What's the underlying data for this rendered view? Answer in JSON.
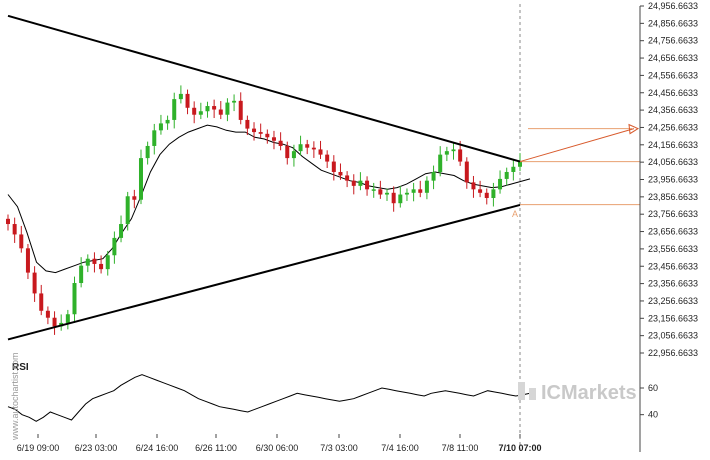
{
  "chart_data": {
    "type": "candlestick",
    "instrument_y_ticks": [
      "24,956.6633",
      "24,856.6633",
      "24,756.6633",
      "24,656.6633",
      "24,556.6633",
      "24,456.6633",
      "24,356.6633",
      "24,256.6633",
      "24,156.6633",
      "24,056.6633",
      "23,956.6633",
      "23,856.6633",
      "23,756.6633",
      "23,656.6633",
      "23,556.6633",
      "23,456.6633",
      "23,356.6633",
      "23,256.6633",
      "23,156.6633",
      "23,056.6633",
      "22,956.6633"
    ],
    "y_tick_values": [
      24956.6633,
      24856.6633,
      24756.6633,
      24656.6633,
      24556.6633,
      24456.6633,
      24356.6633,
      24256.6633,
      24156.6633,
      24056.6633,
      23956.6633,
      23856.6633,
      23756.6633,
      23656.6633,
      23556.6633,
      23456.6633,
      23356.6633,
      23256.6633,
      23156.6633,
      23056.6633,
      22956.6633
    ],
    "ylim": [
      22956.6633,
      24956.6633
    ],
    "x_tick_labels": [
      "6/19 09:00",
      "6/23 03:00",
      "6/24 16:00",
      "6/26 11:00",
      "6/30 06:00",
      "7/3 03:00",
      "7/4 16:00",
      "7/8 11:00",
      "7/10 07:00"
    ],
    "x_tick_bold": "7/10 07:00",
    "close_series": [
      23700,
      23640,
      23560,
      23420,
      23300,
      23200,
      23160,
      23110,
      23130,
      23180,
      23360,
      23460,
      23500,
      23470,
      23440,
      23520,
      23620,
      23700,
      23860,
      23840,
      24080,
      24150,
      24240,
      24280,
      24300,
      24420,
      24450,
      24370,
      24330,
      24350,
      24380,
      24360,
      24330,
      24400,
      24410,
      24300,
      24250,
      24230,
      24220,
      24200,
      24180,
      24150,
      24080,
      24120,
      24160,
      24140,
      24130,
      24100,
      24060,
      24000,
      23980,
      23950,
      23920,
      23950,
      23900,
      23900,
      23870,
      23880,
      23820,
      23870,
      23880,
      23900,
      23880,
      23950,
      24000,
      24100,
      24120,
      24130,
      24060,
      23940,
      23900,
      23880,
      23850,
      23900,
      23960,
      24000,
      24030,
      24060
    ],
    "moving_average": [
      23870,
      23800,
      23650,
      23480,
      23430,
      23420,
      23440,
      23460,
      23480,
      23490,
      23500,
      23560,
      23650,
      23730,
      23860,
      24000,
      24100,
      24160,
      24200,
      24230,
      24250,
      24270,
      24260,
      24240,
      24230,
      24230,
      24200,
      24190,
      24170,
      24160,
      24140,
      24090,
      24050,
      24010,
      23990,
      23970,
      23950,
      23940,
      23920,
      23910,
      23900,
      23910,
      23930,
      23960,
      23990,
      24000,
      23990,
      23980,
      23950,
      23930,
      23920,
      23910,
      23915,
      23930,
      23945,
      23960
    ],
    "trendlines": [
      {
        "name": "resistance",
        "from": {
          "x_index": 0,
          "y": 24900
        },
        "to": {
          "x_index": 77,
          "y": 24060
        }
      },
      {
        "name": "support",
        "from": {
          "x_index": 0,
          "y": 23035
        },
        "to": {
          "x_index": 77,
          "y": 23810
        }
      }
    ],
    "horizontal_levels": [
      24060,
      23812
    ],
    "forecast_arrow": {
      "from_y": 24060,
      "to_y": 24250,
      "level": 24250
    },
    "point_label": "A",
    "rsi": {
      "title": "RSI",
      "y_ticks": [
        "60",
        "40"
      ],
      "y_tick_values": [
        60,
        40
      ],
      "ylim": [
        30,
        72
      ],
      "values": [
        46,
        44,
        40,
        38,
        35,
        38,
        42,
        40,
        38,
        36,
        42,
        48,
        52,
        54,
        56,
        58,
        62,
        65,
        68,
        70,
        68,
        66,
        64,
        62,
        60,
        58,
        55,
        52,
        50,
        48,
        46,
        45,
        44,
        43,
        42,
        44,
        46,
        48,
        50,
        52,
        54,
        56,
        55,
        54,
        53,
        52,
        51,
        50,
        51,
        52,
        54,
        56,
        58,
        60,
        59,
        58,
        57,
        56,
        55,
        54,
        56,
        57,
        58,
        57,
        56,
        55,
        54,
        56,
        58,
        57,
        56,
        55,
        54,
        55,
        56
      ]
    },
    "side_watermark": "www.autochartist.com",
    "brand_watermark": "ICMarkets",
    "colors": {
      "candle_up": "#2fb12a",
      "candle_down": "#c8191e",
      "trendline": "#000000",
      "level_line": "#e8a070",
      "arrow": "#d85a2c",
      "current_time_line": "#888888"
    }
  }
}
